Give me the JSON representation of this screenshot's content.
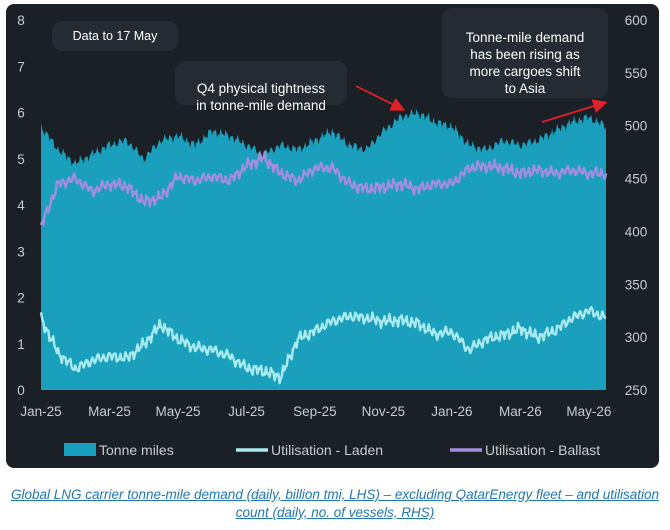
{
  "callouts": {
    "data_note": "Data to 17 May",
    "q4_note": "Q4 physical tightness\nin tonne-mile demand",
    "asia_note": "Tonne-mile demand\nhas been rising as\nmore cargoes shift\nto Asia"
  },
  "caption": "Global LNG carrier tonne-mile demand (daily, billion tmi, LHS) – excluding QatarEnergy fleet – and utilisation count (daily, no. of vessels, RHS)",
  "colors": {
    "tonne_miles": "#1aa0bc",
    "laden": "#a9eaf0",
    "ballast": "#a38de0",
    "background": "#1b1f26",
    "text": "#c9ccd1",
    "arrow": "#e0202a"
  },
  "chart_data": {
    "type": "area",
    "x_ticks": [
      "Jan-25",
      "Mar-25",
      "May-25",
      "Jul-25",
      "Sep-25",
      "Nov-25",
      "Jan-26",
      "Mar-26",
      "May-26"
    ],
    "y_left": {
      "lim": [
        0,
        8
      ],
      "ticks": [
        "0",
        "1",
        "2",
        "3",
        "4",
        "5",
        "6",
        "7",
        "8"
      ]
    },
    "y_right": {
      "lim": [
        250,
        600
      ],
      "ticks": [
        "250",
        "300",
        "350",
        "400",
        "450",
        "500",
        "550",
        "600"
      ]
    },
    "grid": false,
    "legend_position": "bottom",
    "x_months": [
      0,
      0.5,
      1,
      1.5,
      2,
      2.5,
      3,
      3.5,
      4,
      4.5,
      5,
      5.5,
      6,
      6.5,
      7,
      7.5,
      8,
      8.5,
      9,
      9.5,
      10,
      10.5,
      11,
      11.5,
      12,
      12.5,
      13,
      13.5,
      14,
      14.5,
      15,
      15.5,
      16,
      16.5
    ],
    "series": [
      {
        "name": "Tonne miles",
        "axis": "left",
        "type": "area",
        "values": [
          5.7,
          5.2,
          4.9,
          5.1,
          5.3,
          5.4,
          5.0,
          5.4,
          5.5,
          5.3,
          5.6,
          5.5,
          5.3,
          5.1,
          5.3,
          5.2,
          5.4,
          5.6,
          5.3,
          5.2,
          5.6,
          5.9,
          6.0,
          5.8,
          5.7,
          5.3,
          5.2,
          5.4,
          5.3,
          5.4,
          5.6,
          5.8,
          5.9,
          5.7
        ]
      },
      {
        "name": "Utilisation - Laden",
        "axis": "right",
        "type": "line",
        "values": [
          318,
          285,
          270,
          278,
          282,
          280,
          293,
          312,
          298,
          290,
          288,
          282,
          271,
          268,
          262,
          298,
          306,
          315,
          320,
          318,
          315,
          316,
          313,
          303,
          305,
          288,
          298,
          302,
          308,
          300,
          306,
          318,
          325,
          318
        ]
      },
      {
        "name": "Utilisation - Ballast",
        "axis": "right",
        "type": "line",
        "values": [
          405,
          445,
          450,
          438,
          445,
          443,
          428,
          432,
          452,
          448,
          452,
          448,
          462,
          470,
          455,
          448,
          460,
          460,
          445,
          440,
          442,
          445,
          440,
          445,
          445,
          460,
          462,
          460,
          455,
          458,
          455,
          458,
          455,
          455
        ]
      }
    ]
  }
}
